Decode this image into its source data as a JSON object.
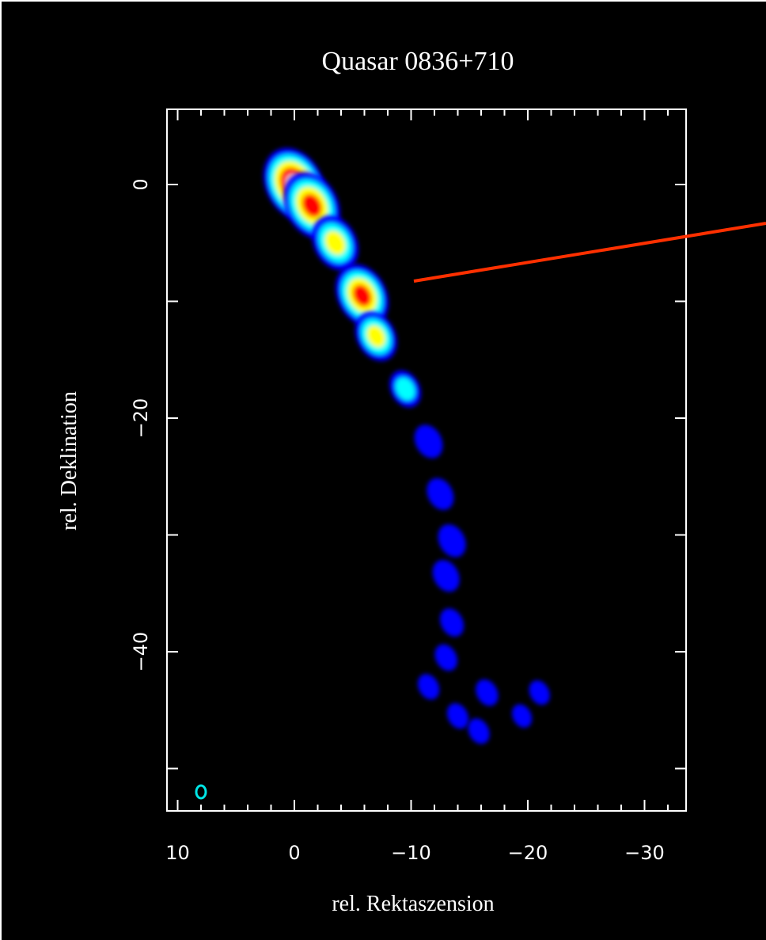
{
  "chart_data": {
    "type": "heatmap",
    "title": "Quasar 0836+710",
    "xlabel": "rel. Rektaszension",
    "ylabel": "rel. Deklination",
    "xlim": [
      11,
      -33
    ],
    "ylim": [
      -55,
      6.5
    ],
    "x_ticks": [
      10,
      0,
      -10,
      -20,
      -30
    ],
    "x_tick_labels": [
      "10",
      "0",
      "−10",
      "−20",
      "−30"
    ],
    "y_ticks": [
      0,
      -20,
      -40
    ],
    "y_tick_labels": [
      "0",
      "−20",
      "−40"
    ],
    "colormap": [
      "#0000ff",
      "#00ffff",
      "#ffff00",
      "#ff0000",
      "#ffc0c0"
    ],
    "jet_components": [
      {
        "x": 0.0,
        "y": 0.0,
        "intensity": 1.0
      },
      {
        "x": -1.5,
        "y": -1.8,
        "intensity": 0.88
      },
      {
        "x": -3.5,
        "y": -5.0,
        "intensity": 0.65
      },
      {
        "x": -5.8,
        "y": -9.5,
        "intensity": 0.8
      },
      {
        "x": -7.0,
        "y": -13.0,
        "intensity": 0.55
      },
      {
        "x": -9.5,
        "y": -17.5,
        "intensity": 0.32
      },
      {
        "x": -11.5,
        "y": -22.0,
        "intensity": 0.25
      },
      {
        "x": -12.5,
        "y": -26.5,
        "intensity": 0.22
      },
      {
        "x": -13.5,
        "y": -30.5,
        "intensity": 0.24
      },
      {
        "x": -13.0,
        "y": -33.5,
        "intensity": 0.22
      },
      {
        "x": -13.5,
        "y": -37.5,
        "intensity": 0.15
      },
      {
        "x": -13.0,
        "y": -40.5,
        "intensity": 0.12
      },
      {
        "x": -16.5,
        "y": -43.5,
        "intensity": 0.12
      },
      {
        "x": -11.5,
        "y": -43.0,
        "intensity": 0.1
      },
      {
        "x": -14.0,
        "y": -45.5,
        "intensity": 0.1
      },
      {
        "x": -15.8,
        "y": -46.8,
        "intensity": 0.1
      },
      {
        "x": -21.0,
        "y": -43.5,
        "intensity": 0.08
      },
      {
        "x": -19.5,
        "y": -45.5,
        "intensity": 0.06
      }
    ],
    "beam": {
      "x": 8,
      "y": -52,
      "color": "#00e5e5"
    },
    "pointer_line_color": "#ff3000"
  }
}
